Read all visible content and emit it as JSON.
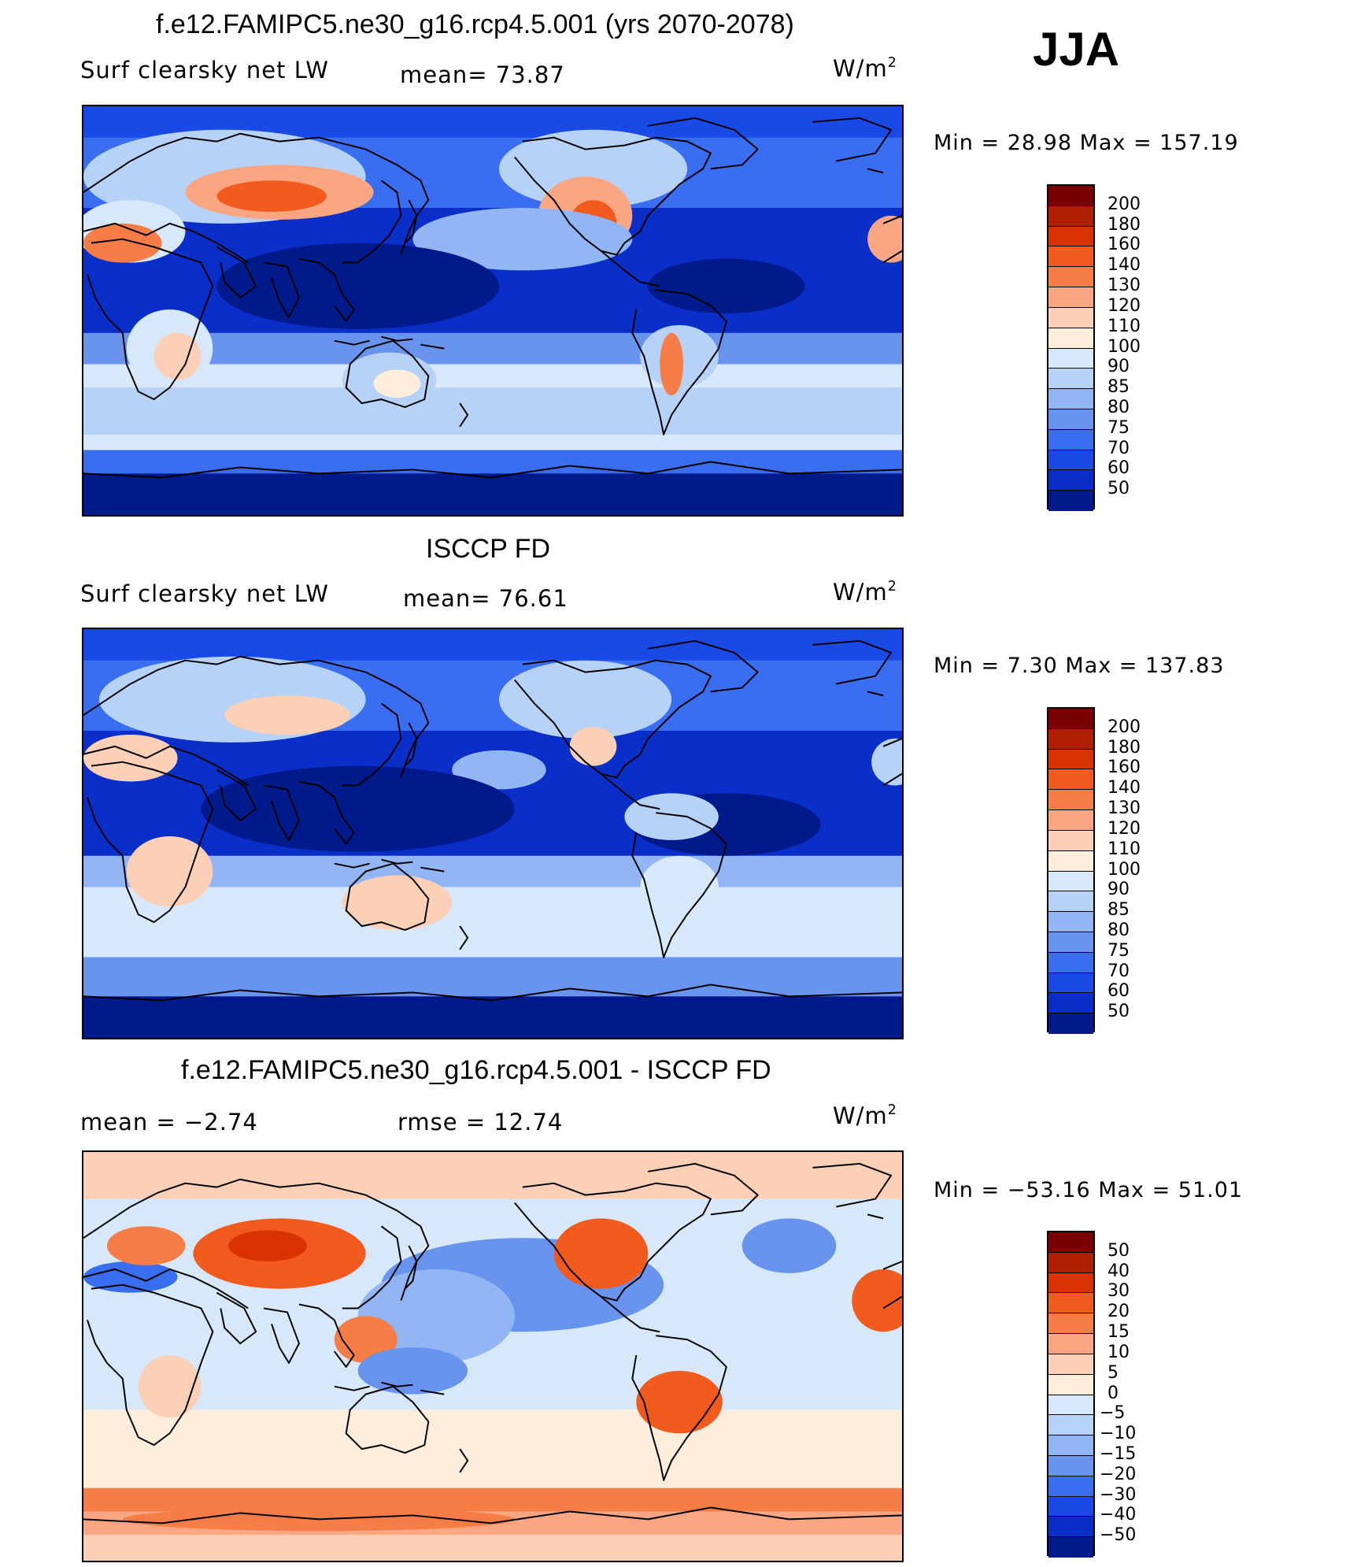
{
  "season": "JJA",
  "palette_main": [
    "#7a0000",
    "#b01e00",
    "#d83200",
    "#f25a1e",
    "#f77d46",
    "#fba682",
    "#fcd0b6",
    "#fdeedc",
    "#d6e8fa",
    "#b6d2f7",
    "#92b6f4",
    "#6894ee",
    "#3a6ef0",
    "#1a4ae6",
    "#0a2ec8",
    "#001a8c"
  ],
  "palette_diff": [
    "#7a0000",
    "#b01e00",
    "#d83200",
    "#f25a1e",
    "#f77d46",
    "#fba682",
    "#fcd0b6",
    "#fdeedc",
    "#d6e8fa",
    "#b6d2f7",
    "#92b6f4",
    "#6894ee",
    "#3a6ef0",
    "#1a4ae6",
    "#0a2ec8",
    "#001a8c"
  ],
  "panels": [
    {
      "title": "f.e12.FAMIPC5.ne30_g16.rcp4.5.001 (yrs 2070-2078)",
      "variable": "Surf  clearsky  net  LW",
      "left_label": "Surf  clearsky  net  LW",
      "center_label": "mean=   73.87",
      "units_base": "W/m",
      "units_exp": "2",
      "minmax": "Min  =    28.98  Max  =  157.19",
      "levels": [
        "200",
        "180",
        "160",
        "140",
        "130",
        "120",
        "110",
        "100",
        "90",
        "85",
        "80",
        "75",
        "70",
        "60",
        "50"
      ],
      "field": "model"
    },
    {
      "title": "ISCCP FD",
      "left_label": "Surf  clearsky  net  LW",
      "center_label": "mean=   76.61",
      "units_base": "W/m",
      "units_exp": "2",
      "minmax": "Min  =     7.30  Max  =  137.83",
      "levels": [
        "200",
        "180",
        "160",
        "140",
        "130",
        "120",
        "110",
        "100",
        "90",
        "85",
        "80",
        "75",
        "70",
        "60",
        "50"
      ],
      "field": "obs"
    },
    {
      "title": "f.e12.FAMIPC5.ne30_g16.rcp4.5.001 - ISCCP FD",
      "left_label": "mean  =   −2.74",
      "center_label": "rmse  =    12.74",
      "units_base": "W/m",
      "units_exp": "2",
      "minmax": "Min  = −53.16  Max  =   51.01",
      "levels": [
        "50",
        "40",
        "30",
        "20",
        "15",
        "10",
        "5",
        "0",
        "−5",
        "−10",
        "−15",
        "−20",
        "−30",
        "−40",
        "−50"
      ],
      "field": "diff"
    }
  ]
}
